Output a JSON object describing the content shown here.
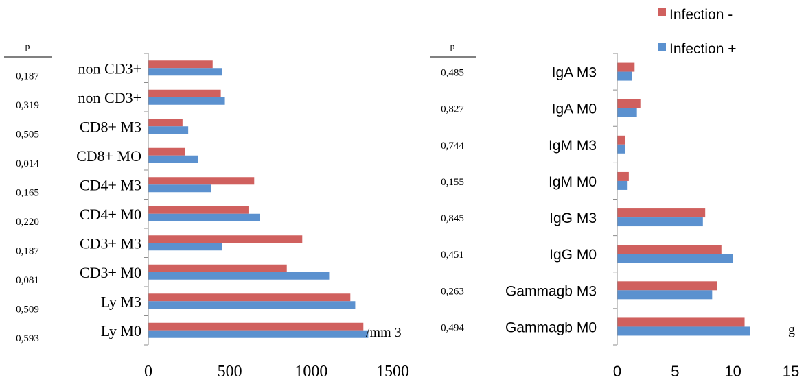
{
  "legend": {
    "position": "top-right",
    "items": [
      {
        "label": "Infection -",
        "color": "#D0605E"
      },
      {
        "label": "Infection +",
        "color": "#5B91CF"
      }
    ]
  },
  "chart_data": [
    {
      "type": "bar",
      "orientation": "horizontal",
      "pvalue_header": "p",
      "unit_label": "/mm 3",
      "xlim": [
        0,
        1500
      ],
      "xticks": [
        "0",
        "500",
        "1000",
        "1500"
      ],
      "categories": [
        "non CD3+",
        "non CD3+",
        "CD8+ M3",
        "CD8+ MO",
        "CD4+ M3",
        "CD4+ M0",
        "CD3+ M3",
        "CD3+ M0",
        "Ly M3",
        "Ly M0"
      ],
      "pvalues": [
        "0,187",
        "0,319",
        "0,505",
        "0,014",
        "0,165",
        "0,220",
        "0,187",
        "0,081",
        "0,509",
        "0,593"
      ],
      "series": [
        {
          "name": "Infection -",
          "color": "#D0605E",
          "values": [
            395,
            445,
            210,
            225,
            650,
            615,
            945,
            850,
            1240,
            1320
          ]
        },
        {
          "name": "Infection +",
          "color": "#5B91CF",
          "values": [
            455,
            470,
            245,
            305,
            385,
            685,
            455,
            1110,
            1270,
            1350
          ]
        }
      ]
    },
    {
      "type": "bar",
      "orientation": "horizontal",
      "pvalue_header": "p",
      "unit_label": "g",
      "xlim": [
        0,
        15
      ],
      "xticks": [
        "0",
        "5",
        "10",
        "15"
      ],
      "categories": [
        "IgA M3",
        "IgA M0",
        "IgM M3",
        "IgM M0",
        "IgG M3",
        "IgG M0",
        "Gammagb M3",
        "Gammagb M0"
      ],
      "pvalues": [
        "0,485",
        "0,827",
        "0,744",
        "0,155",
        "0,845",
        "0,451",
        "0,263",
        "0,494"
      ],
      "series": [
        {
          "name": "Infection -",
          "color": "#D0605E",
          "values": [
            1.5,
            2.0,
            0.7,
            1.0,
            7.6,
            9.0,
            8.6,
            11.0
          ]
        },
        {
          "name": "Infection +",
          "color": "#5B91CF",
          "values": [
            1.3,
            1.7,
            0.7,
            0.9,
            7.4,
            10.0,
            8.2,
            11.5
          ]
        }
      ]
    }
  ]
}
